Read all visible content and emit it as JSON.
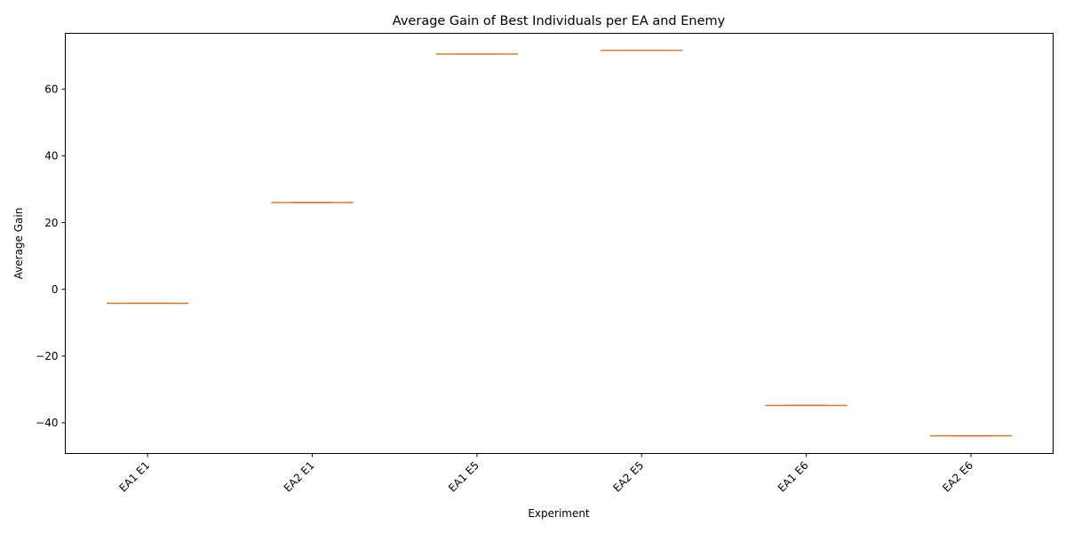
{
  "chart_data": {
    "type": "box",
    "title": "Average Gain of Best Individuals per EA and Enemy",
    "xlabel": "Experiment",
    "ylabel": "Average Gain",
    "categories": [
      "EA1 E1",
      "EA2 E1",
      "EA1 E5",
      "EA2 E5",
      "EA1 E6",
      "EA2 E6"
    ],
    "values": [
      -4.2,
      26.0,
      70.5,
      71.6,
      -34.8,
      -43.9
    ],
    "ylim": [
      -49.2,
      76.7
    ],
    "yticks": [
      -40,
      -20,
      0,
      20,
      40,
      60
    ],
    "median_color": "#e08a3c",
    "grid": false,
    "legend": "none"
  }
}
